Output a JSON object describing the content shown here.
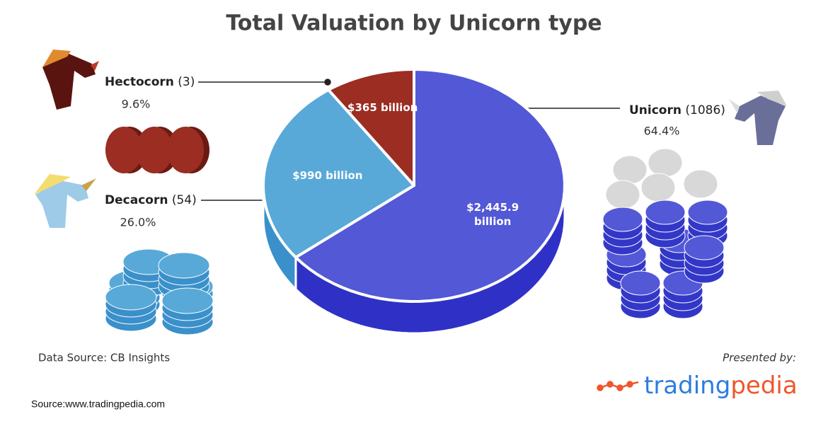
{
  "title": "Total Valuation by Unicorn type",
  "chart_data": {
    "type": "pie",
    "categories": [
      "Unicorn",
      "Decacorn",
      "Hectocorn"
    ],
    "counts": [
      "(1086)",
      "(54)",
      "(3)"
    ],
    "percent_labels": [
      "64.4%",
      "26.0%",
      "9.6%"
    ],
    "values": [
      2445.9,
      990,
      365
    ],
    "value_labels": [
      "$2,445.9 billion",
      "$990 billion",
      "$365 billion"
    ],
    "colors": [
      "#5358d6",
      "#58a9d8",
      "#9b2d22"
    ],
    "side_colors": [
      "#2f31c6",
      "#3a90ca",
      "#741d15"
    ]
  },
  "data_source": "Data Source: CB Insights",
  "presented_by": "Presented by:",
  "brand": {
    "first": "trading",
    "second": "pedia"
  },
  "source": "Source:www.tradingpedia.com"
}
